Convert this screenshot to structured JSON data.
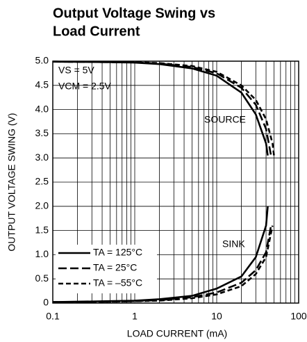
{
  "chart_data": {
    "type": "line",
    "title": [
      "Output Voltage Swing vs",
      "Load Current"
    ],
    "xlabel": "LOAD CURRENT (mA)",
    "ylabel": "OUTPUT VOLTAGE SWING (V)",
    "annotations": [
      "VS = 5V",
      "VCM = 2.5V",
      "SOURCE",
      "SINK"
    ],
    "xscale": "log",
    "xlim": [
      0.1,
      100
    ],
    "ylim": [
      0,
      5
    ],
    "xticks": [
      0.1,
      1,
      10,
      100
    ],
    "xminorticks": [
      0.2,
      0.3,
      0.4,
      0.5,
      0.6,
      0.7,
      0.8,
      0.9,
      2,
      3,
      4,
      5,
      6,
      7,
      8,
      9,
      20,
      30,
      40,
      50,
      60,
      70,
      80,
      90
    ],
    "yticks": [
      0,
      0.5,
      {
        "value": 1,
        "label": "1.0"
      },
      1.5,
      {
        "value": 2,
        "label": "2.0"
      },
      2.5,
      {
        "value": 3,
        "label": "3.0"
      },
      3.5,
      {
        "value": 4,
        "label": "4.0"
      },
      4.5,
      {
        "value": 5,
        "label": "5.0"
      }
    ],
    "grid": true,
    "legend": "lower left",
    "series": [
      {
        "name": "TA = 125°C",
        "color": "#000000",
        "dash": "solid",
        "source": {
          "x": [
            0.1,
            0.5,
            1,
            2,
            5,
            10,
            20,
            30,
            40,
            42
          ],
          "values": [
            4.99,
            4.98,
            4.97,
            4.94,
            4.85,
            4.7,
            4.35,
            3.9,
            3.3,
            3.05
          ]
        },
        "sink": {
          "x": [
            0.1,
            0.5,
            1,
            2,
            5,
            10,
            20,
            30,
            40,
            42
          ],
          "values": [
            0.02,
            0.04,
            0.05,
            0.08,
            0.15,
            0.3,
            0.55,
            0.95,
            1.6,
            2.0
          ]
        }
      },
      {
        "name": "TA = 25°C",
        "color": "#000000",
        "dash": "long",
        "source": {
          "x": [
            0.1,
            0.5,
            1,
            2,
            5,
            10,
            20,
            30,
            40,
            46
          ],
          "values": [
            4.99,
            4.98,
            4.975,
            4.95,
            4.88,
            4.75,
            4.45,
            4.1,
            3.6,
            3.05
          ]
        },
        "sink": {
          "x": [
            0.1,
            0.5,
            1,
            2,
            5,
            10,
            20,
            30,
            40,
            46
          ],
          "values": [
            0.02,
            0.03,
            0.04,
            0.06,
            0.12,
            0.22,
            0.42,
            0.68,
            1.05,
            1.6
          ]
        }
      },
      {
        "name": "TA = –55°C",
        "color": "#000000",
        "dash": "short",
        "source": {
          "x": [
            0.1,
            0.5,
            1,
            2,
            5,
            10,
            20,
            30,
            40,
            48,
            50
          ],
          "values": [
            4.99,
            4.985,
            4.98,
            4.96,
            4.9,
            4.78,
            4.5,
            4.2,
            3.8,
            3.3,
            3.05
          ]
        },
        "sink": {
          "x": [
            0.1,
            0.5,
            1,
            2,
            5,
            10,
            20,
            30,
            40,
            48
          ],
          "values": [
            0.02,
            0.03,
            0.04,
            0.05,
            0.1,
            0.18,
            0.35,
            0.6,
            0.95,
            1.6
          ]
        }
      }
    ]
  }
}
